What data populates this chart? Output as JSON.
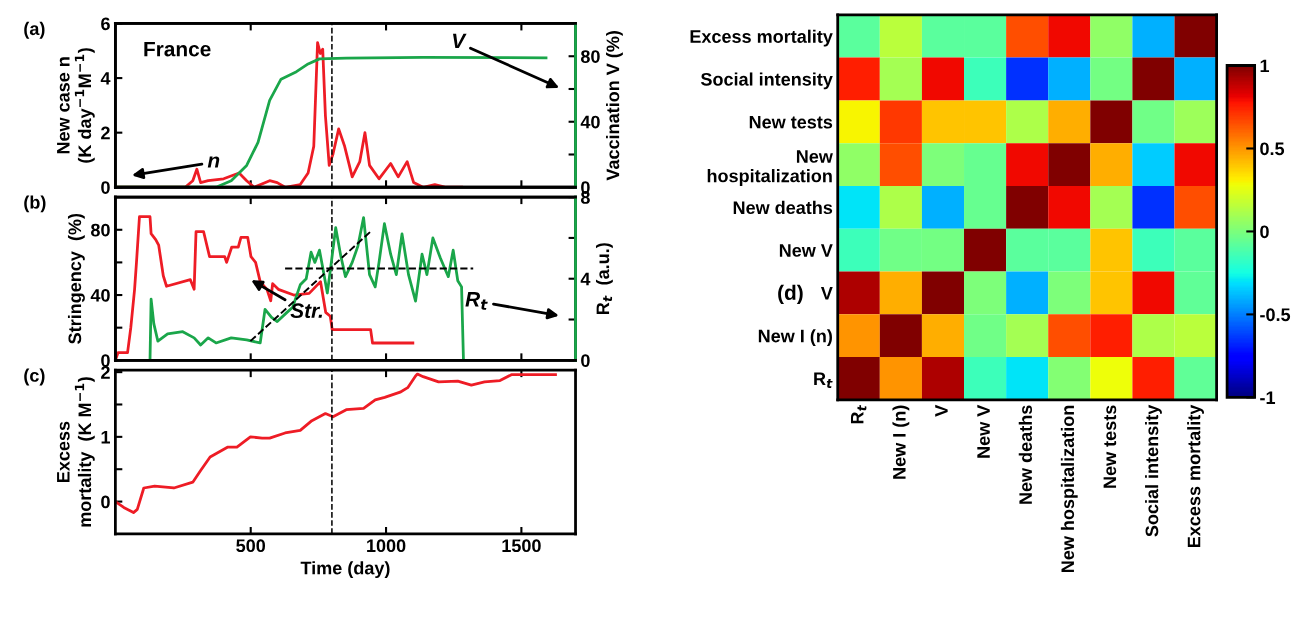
{
  "chart_data": [
    {
      "type": "line",
      "ylabel": "New case n\n(K day$^{−1}$M$^{−1}$)",
      "y2label": "Vaccination V (%)",
      "annotations": [
        "(a)",
        "France",
        "V",
        "n"
      ],
      "xlim": [
        0,
        1700
      ],
      "xticks": [
        500,
        1000,
        1500
      ],
      "ylim": [
        0,
        6
      ],
      "yticks": [
        0,
        2,
        4,
        6
      ],
      "y2lim": [
        0,
        100
      ],
      "y2ticks": [
        0,
        {
          "value": 20,
          "label": null
        },
        40,
        {
          "value": 60,
          "label": null
        },
        80
      ],
      "tick_labels": "y",
      "ref_lines": [
        {
          "axis": "x",
          "value": 800,
          "label": null,
          "color": "#000000",
          "line_style": "dashed"
        }
      ],
      "series": [
        {
          "color": "#ee1c25",
          "x": [
            0,
            258,
            286,
            301,
            315,
            343,
            400,
            457,
            485,
            513,
            570,
            598,
            627,
            683,
            712,
            733,
            747,
            757,
            766,
            776,
            790,
            804,
            825,
            847,
            875,
            903,
            922,
            939,
            974,
            1017,
            1045,
            1078,
            1102,
            1137,
            1180,
            1222,
            1279
          ],
          "values": [
            0,
            0,
            0.24,
            0.66,
            0.17,
            0.24,
            0.31,
            0.52,
            0.24,
            0,
            0.24,
            0.17,
            0,
            0.1,
            0.52,
            1.5,
            5.3,
            4.9,
            5.06,
            2.62,
            0.8,
            1.22,
            2.14,
            1.5,
            0.38,
            0.94,
            2.0,
            0.8,
            0.31,
            0.87,
            0.38,
            0.94,
            0.17,
            0,
            0.1,
            0,
            0
          ]
        },
        {
          "color": "#1aa64a",
          "axis": "y2",
          "x": [
            0,
            372,
            428,
            485,
            527,
            570,
            612,
            669,
            712,
            754,
            853,
            1137,
            1591
          ],
          "values": [
            0,
            0,
            4,
            13.3,
            27.4,
            53.1,
            66,
            70.6,
            75.3,
            78.4,
            78.8,
            79.3,
            79
          ]
        }
      ]
    },
    {
      "type": "line",
      "ylabel": "Stringency  (%)",
      "y2label": "R$_{t}$  (a.u.)",
      "annotations": [
        "(b)",
        "Str.",
        "R$_{t}$"
      ],
      "xlim": [
        0,
        1700
      ],
      "xticks": [
        500,
        1000,
        1500
      ],
      "ylim": [
        0,
        100
      ],
      "yticks": [
        0,
        {
          "value": 20,
          "label": null
        },
        40,
        {
          "value": 60,
          "label": null
        },
        80
      ],
      "y2lim": [
        0,
        8
      ],
      "y2ticks": [
        0,
        {
          "value": 2,
          "label": null
        },
        4,
        {
          "value": 6,
          "label": null
        },
        8
      ],
      "tick_labels": "y",
      "ref_lines": [
        {
          "axis": "x",
          "value": 800,
          "label": null,
          "color": "#000000",
          "line_style": "dashed"
        }
      ],
      "series": [
        {
          "color": "#ee1c25",
          "x": [
            0,
            10,
            45,
            57,
            71,
            78,
            89,
            128,
            132,
            149,
            160,
            177,
            189,
            277,
            291,
            298,
            326,
            348,
            404,
            411,
            430,
            454,
            464,
            489,
            501,
            518,
            535,
            560,
            574,
            581,
            602,
            659,
            716,
            758,
            777,
            794,
            801,
            943,
            950,
            1099
          ],
          "values": [
            0,
            4.7,
            4.7,
            20,
            43.5,
            60,
            88,
            88,
            77.6,
            74,
            70.6,
            51.8,
            45.4,
            49.4,
            43.5,
            78.8,
            78.8,
            63.5,
            63.5,
            60,
            69.4,
            69.4,
            75.3,
            75.3,
            63.5,
            60,
            48.2,
            43.5,
            36.5,
            47,
            43.5,
            40,
            41,
            48.2,
            29.4,
            27,
            18.8,
            18.8,
            10.6,
            10.6
          ]
        },
        {
          "color": "#1aa64a",
          "axis": "y2",
          "x": [
            0,
            128,
            132,
            142,
            157,
            193,
            249,
            291,
            315,
            343,
            372,
            428,
            485,
            535,
            553,
            577,
            598,
            634,
            655,
            683,
            705,
            723,
            737,
            754,
            768,
            783,
            794,
            814,
            833,
            850,
            875,
            896,
            917,
            939,
            960,
            974,
            994,
            1017,
            1038,
            1059,
            1083,
            1109,
            1133,
            1151,
            1173,
            1201,
            1230,
            1248,
            1265,
            1279,
            1286,
            1700
          ],
          "values": [
            0,
            0,
            3.0,
            1.8,
            0.94,
            1.3,
            1.4,
            1.1,
            0.75,
            1.1,
            0.85,
            1.1,
            1.0,
            0.85,
            2.5,
            2.1,
            1.9,
            2.35,
            2.6,
            3.7,
            4.0,
            5.3,
            4.8,
            5.4,
            4.4,
            3.3,
            4.4,
            6.5,
            5.1,
            4.1,
            4.8,
            5.6,
            7.0,
            4.2,
            3.6,
            4.8,
            6.7,
            5.2,
            4.2,
            6.2,
            4.2,
            2.9,
            5.2,
            4.2,
            6.0,
            5.0,
            4.1,
            5.4,
            3.9,
            3.6,
            0,
            0
          ]
        },
        {
          "color": "#000000",
          "axis": "y2",
          "line_style": "dashed",
          "x": [
            627,
            1322
          ],
          "values": [
            4.5,
            4.5
          ]
        },
        {
          "color": "#000000",
          "axis": "y2",
          "line_style": "dashed",
          "x": [
            499,
            946
          ],
          "values": [
            0.94,
            6.35
          ]
        }
      ]
    },
    {
      "type": "line",
      "ylabel": "Excess\nmortality  (K M$^{−1}$)",
      "xlabel": "Time (day)",
      "annotations": [
        "(c)"
      ],
      "xlim": [
        0,
        1700
      ],
      "xticks": [
        500,
        1000,
        1500
      ],
      "ylim": [
        -0.5,
        2.03
      ],
      "yticks": [
        0,
        {
          "value": 0.5,
          "label": null
        },
        1,
        {
          "value": 1.5,
          "label": null
        },
        2
      ],
      "ref_lines": [
        {
          "axis": "x",
          "value": 800,
          "label": null,
          "color": "#000000",
          "line_style": "dashed"
        }
      ],
      "series": [
        {
          "color": "#ee1c25",
          "x": [
            0,
            31,
            67,
            81,
            105,
            145,
            216,
            286,
            315,
            350,
            414,
            449,
            499,
            542,
            570,
            627,
            683,
            726,
            776,
            804,
            853,
            917,
            960,
            995,
            1052,
            1080,
            1109,
            1116,
            1137,
            1194,
            1265,
            1315,
            1364,
            1421,
            1463,
            1626
          ],
          "values": [
            0,
            -0.09,
            -0.17,
            -0.12,
            0.21,
            0.24,
            0.21,
            0.3,
            0.48,
            0.69,
            0.84,
            0.84,
            1.0,
            0.98,
            0.98,
            1.06,
            1.1,
            1.25,
            1.36,
            1.31,
            1.42,
            1.44,
            1.57,
            1.61,
            1.69,
            1.76,
            1.94,
            1.97,
            1.93,
            1.85,
            1.86,
            1.8,
            1.85,
            1.87,
            1.96,
            1.96
          ]
        }
      ]
    },
    {
      "type": "heatmap",
      "annotations": [
        "(d)"
      ],
      "categories": [
        "R$_{t}$",
        "New I (n)",
        "V",
        "New V",
        "New deaths",
        "New hospitalization",
        "New tests",
        "Social intensity",
        "Excess mortality"
      ],
      "y_categories": [
        "Excess mortality",
        "Social intensity",
        "New tests",
        "New\nhospitalization",
        "New deaths",
        "New V",
        "V",
        "New I (n)",
        "R$_{t}$"
      ],
      "cells": [
        [
          -0.08,
          0.15,
          -0.08,
          -0.08,
          0.65,
          0.8,
          0.05,
          -0.4,
          1
        ],
        [
          0.75,
          0.1,
          0.8,
          -0.15,
          -0.65,
          -0.4,
          -0.02,
          1,
          -0.4
        ],
        [
          0.3,
          0.7,
          0.4,
          0.4,
          0.12,
          0.45,
          1,
          -0.03,
          0.08
        ],
        [
          0.05,
          0.65,
          0.0,
          -0.05,
          0.8,
          1,
          0.45,
          -0.35,
          0.8
        ],
        [
          -0.3,
          0.12,
          -0.4,
          -0.05,
          1,
          0.8,
          0.1,
          -0.65,
          0.65
        ],
        [
          -0.15,
          -0.03,
          -0.02,
          1,
          -0.08,
          -0.08,
          0.4,
          -0.15,
          -0.08
        ],
        [
          0.92,
          0.45,
          1,
          0.0,
          -0.4,
          0.0,
          0.4,
          0.8,
          -0.07
        ],
        [
          0.5,
          1,
          0.45,
          -0.03,
          0.1,
          0.65,
          0.75,
          0.12,
          0.15
        ],
        [
          1,
          0.5,
          0.92,
          -0.15,
          -0.3,
          0.02,
          0.28,
          0.75,
          -0.07
        ]
      ],
      "clim": [
        -1,
        1
      ],
      "cticks": [
        -1,
        -0.5,
        0,
        0.5,
        1
      ]
    }
  ]
}
